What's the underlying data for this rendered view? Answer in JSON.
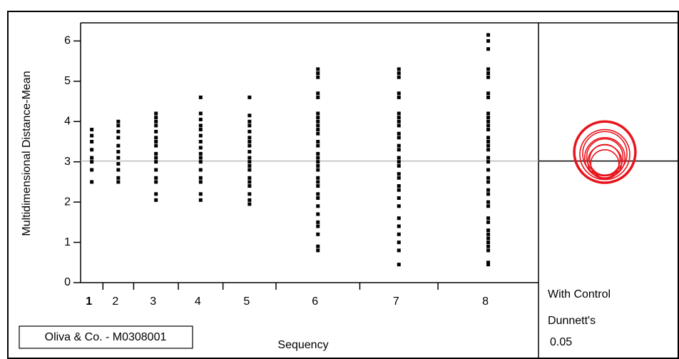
{
  "chart_data": {
    "type": "strip",
    "y_label": "Multidimensional Distance-Mean",
    "x_label": "Sequency",
    "categories": [
      "1",
      "2",
      "3",
      "4",
      "5",
      "6",
      "7",
      "8"
    ],
    "category_color": "#e8141c",
    "point_color": "#000000",
    "values": [
      [
        2.5,
        2.8,
        3.0,
        3.1,
        3.3,
        3.5,
        3.65,
        3.8
      ],
      [
        2.5,
        2.6,
        2.8,
        2.95,
        3.1,
        3.25,
        3.4,
        3.6,
        3.75,
        3.9,
        4.0
      ],
      [
        2.05,
        2.2,
        2.5,
        2.6,
        2.8,
        3.0,
        3.1,
        3.2,
        3.4,
        3.5,
        3.6,
        3.75,
        3.9,
        4.0,
        4.1,
        4.2
      ],
      [
        2.05,
        2.2,
        2.5,
        2.6,
        2.8,
        3.0,
        3.1,
        3.2,
        3.35,
        3.5,
        3.65,
        3.8,
        3.9,
        4.05,
        4.2,
        4.6
      ],
      [
        1.95,
        2.05,
        2.2,
        2.4,
        2.5,
        2.6,
        2.8,
        2.9,
        3.0,
        3.1,
        3.25,
        3.4,
        3.5,
        3.6,
        3.75,
        3.9,
        4.0,
        4.15,
        4.6
      ],
      [
        0.8,
        0.9,
        1.2,
        1.4,
        1.5,
        1.7,
        1.9,
        2.1,
        2.2,
        2.4,
        2.5,
        2.6,
        2.8,
        2.9,
        3.0,
        3.1,
        3.2,
        3.4,
        3.5,
        3.7,
        3.8,
        3.9,
        4.0,
        4.1,
        4.2,
        4.6,
        4.7,
        5.1,
        5.2,
        5.3
      ],
      [
        0.45,
        0.8,
        1.0,
        1.2,
        1.4,
        1.6,
        1.9,
        2.1,
        2.3,
        2.4,
        2.6,
        2.7,
        2.9,
        3.0,
        3.1,
        3.3,
        3.4,
        3.6,
        3.7,
        3.9,
        4.0,
        4.1,
        4.2,
        4.6,
        4.7,
        5.1,
        5.2,
        5.3
      ],
      [
        0.45,
        0.5,
        0.8,
        0.9,
        1.0,
        1.1,
        1.2,
        1.3,
        1.5,
        1.6,
        1.9,
        2.0,
        2.2,
        2.3,
        2.5,
        2.6,
        2.8,
        3.0,
        3.1,
        3.3,
        3.4,
        3.5,
        3.6,
        3.8,
        3.9,
        4.0,
        4.1,
        4.2,
        4.6,
        4.7,
        5.1,
        5.2,
        5.3,
        5.8,
        6.0,
        6.15
      ]
    ],
    "mean": 3.02,
    "ylim": [
      0,
      6.45
    ],
    "yticks": [
      0,
      1,
      2,
      3,
      4,
      5,
      6
    ],
    "comparison_circles": {
      "color": "#e8141c",
      "centers": [
        3.24,
        3.18,
        3.1,
        3.0,
        2.95,
        3.05,
        3.12,
        3.2
      ],
      "radii": [
        0.76,
        0.62,
        0.5,
        0.42,
        0.35,
        0.38,
        0.45,
        0.55
      ]
    },
    "circle_notes": [
      "With Control",
      "Dunnett's",
      "0.05"
    ],
    "source_box": "Oliva & Co. - M0308001"
  }
}
